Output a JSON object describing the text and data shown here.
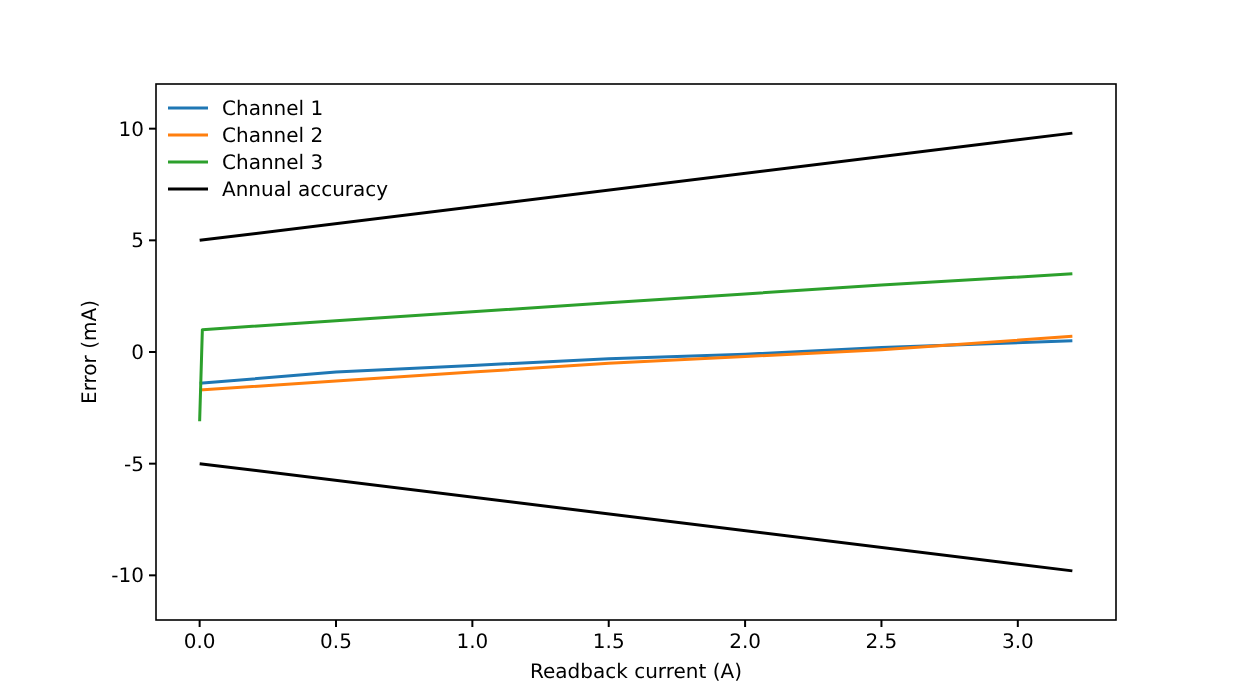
{
  "chart_data": {
    "type": "line",
    "xlabel": "Readback current (A)",
    "ylabel": "Error (mA)",
    "xlim": [
      -0.16,
      3.36
    ],
    "xticks": [
      {
        "value": 0,
        "label": "0.0"
      },
      0.5,
      {
        "value": 1,
        "label": "1.0"
      },
      1.5,
      {
        "value": 2,
        "label": "2.0"
      },
      2.5,
      {
        "value": 3,
        "label": "3.0"
      }
    ],
    "ylim": [
      -12,
      12
    ],
    "yticks": [
      -10,
      -5,
      0,
      5,
      10
    ],
    "grid": false,
    "legend": "top left",
    "line_style": "solid",
    "marker": "none",
    "series": [
      {
        "name": "Channel 1",
        "color": "#1f77b4",
        "x": [
          0,
          0.5,
          1,
          1.5,
          2,
          2.5,
          3.2
        ],
        "values": [
          -1.4,
          -0.9,
          -0.6,
          -0.3,
          -0.1,
          0.2,
          0.5
        ]
      },
      {
        "name": "Channel 2",
        "color": "#ff7f0e",
        "x": [
          0,
          0.5,
          1,
          1.5,
          2,
          2.5,
          3.2
        ],
        "values": [
          -1.7,
          -1.3,
          -0.9,
          -0.5,
          -0.2,
          0.1,
          0.7
        ]
      },
      {
        "name": "Channel 3",
        "color": "#2ca02c",
        "x": [
          0,
          0.01,
          0.5,
          1,
          1.5,
          2,
          2.5,
          3.2
        ],
        "values": [
          -3.1,
          1.0,
          1.4,
          1.8,
          2.2,
          2.6,
          3.0,
          3.5
        ]
      },
      {
        "name": "Annual accuracy",
        "color": "#000000",
        "x": [
          0,
          3.2
        ],
        "values": [
          5,
          9.8
        ]
      },
      {
        "color": "#000000",
        "x": [
          0,
          3.2
        ],
        "values": [
          -5,
          -9.8
        ]
      }
    ]
  }
}
